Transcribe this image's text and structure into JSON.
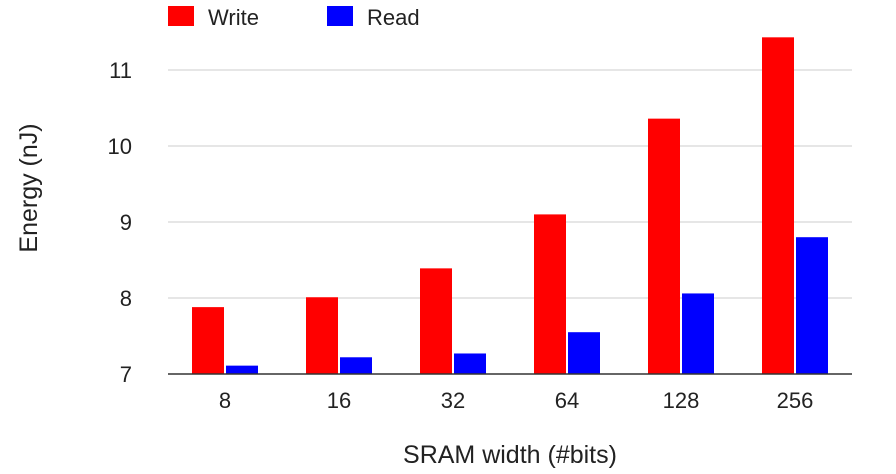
{
  "chart_data": {
    "type": "bar",
    "categories": [
      "8",
      "16",
      "32",
      "64",
      "128",
      "256"
    ],
    "series": [
      {
        "name": "Write",
        "color": "#ff0000",
        "values": [
          7.88,
          8.01,
          8.39,
          9.1,
          10.36,
          11.43
        ]
      },
      {
        "name": "Read",
        "color": "#0000ff",
        "values": [
          7.11,
          7.22,
          7.27,
          7.55,
          8.06,
          8.8
        ]
      }
    ],
    "title": "",
    "xlabel": "SRAM width (#bits)",
    "ylabel": "Energy (nJ)",
    "ylim": [
      7,
      11.5
    ],
    "yticks": [
      "7",
      "8",
      "9",
      "10",
      "11"
    ],
    "grid": true,
    "legend_position": "top-left"
  }
}
